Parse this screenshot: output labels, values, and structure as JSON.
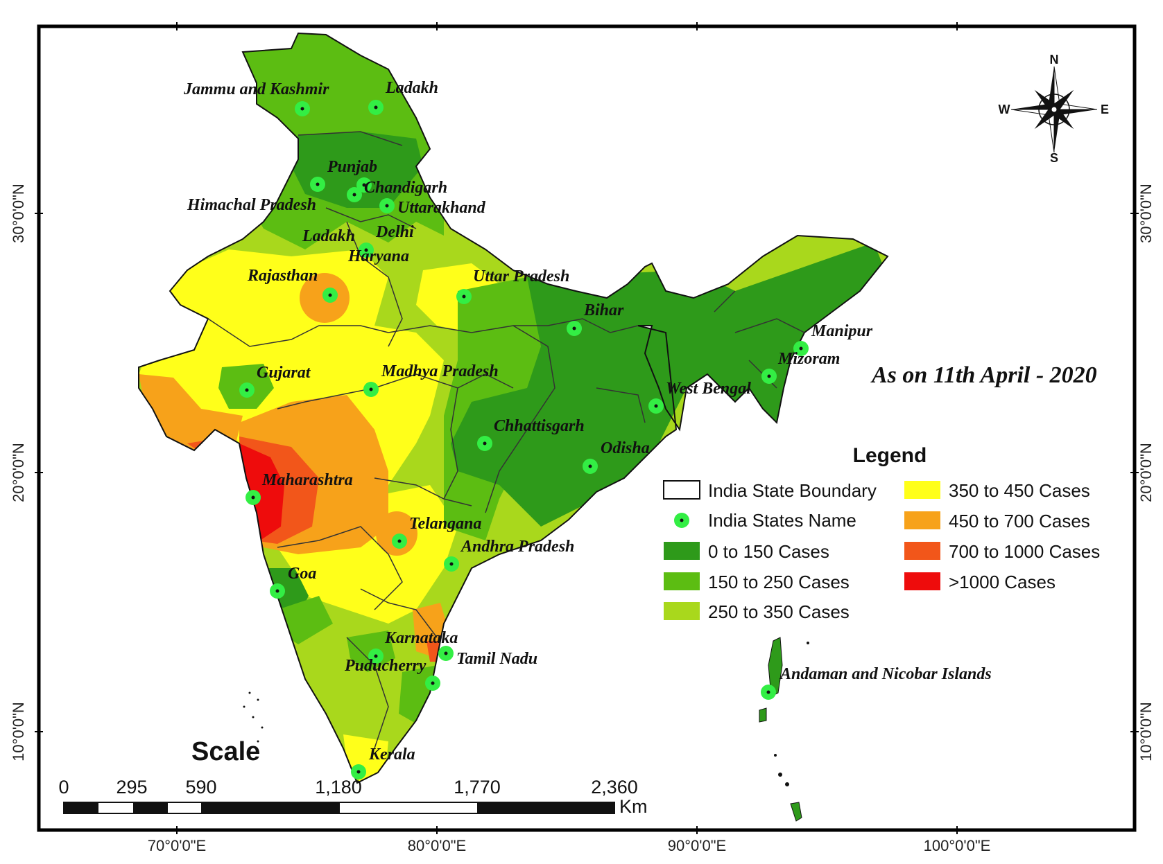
{
  "map": {
    "date_note": "As on 11th April - 2020",
    "lon_labels": [
      "70°0'0\"E",
      "80°0'0\"E",
      "90°0'0\"E",
      "100°0'0\"E"
    ],
    "lat_labels": [
      "30°0'0\"N",
      "20°0'0\"N",
      "10°0'0\"N"
    ],
    "colors": {
      "c0_150": "#2e9a1a",
      "c150_250": "#5cbd12",
      "c250_350": "#a9d81c",
      "c350_450": "#ffff1a",
      "c450_700": "#f7a21a",
      "c700_1000": "#f2561a",
      "c1000": "#ee0c0c",
      "marker": "#33ee44"
    },
    "states": [
      {
        "name": "Jammu and Kashmir"
      },
      {
        "name": "Ladakh"
      },
      {
        "name": "Punjab"
      },
      {
        "name": "Chandigarh"
      },
      {
        "name": "Himachal Pradesh"
      },
      {
        "name": "Uttarakhand"
      },
      {
        "name": "Ladakh"
      },
      {
        "name": "Delhi"
      },
      {
        "name": "Haryana"
      },
      {
        "name": "Rajasthan"
      },
      {
        "name": "Uttar Pradesh"
      },
      {
        "name": "Bihar"
      },
      {
        "name": "Manipur"
      },
      {
        "name": "Mizoram"
      },
      {
        "name": "Gujarat"
      },
      {
        "name": "Madhya Pradesh"
      },
      {
        "name": "West Bengal"
      },
      {
        "name": "Chhattisgarh"
      },
      {
        "name": "Odisha"
      },
      {
        "name": "Maharashtra"
      },
      {
        "name": "Telangana"
      },
      {
        "name": "Andhra Pradesh"
      },
      {
        "name": "Goa"
      },
      {
        "name": "Karnataka"
      },
      {
        "name": "Tamil Nadu"
      },
      {
        "name": "Puducherry"
      },
      {
        "name": "Andaman and Nicobar Islands"
      },
      {
        "name": "Kerala"
      }
    ]
  },
  "legend": {
    "title": "Legend",
    "items": [
      {
        "label": "India State Boundary",
        "swatch": "boundary"
      },
      {
        "label": "India States Name",
        "swatch": "marker"
      },
      {
        "label": "0 to 150 Cases",
        "color": "#2e9a1a"
      },
      {
        "label": "150 to 250 Cases",
        "color": "#5cbd12"
      },
      {
        "label": "250 to 350 Cases",
        "color": "#a9d81c"
      },
      {
        "label": "350 to 450 Cases",
        "color": "#ffff1a"
      },
      {
        "label": "450 to 700 Cases",
        "color": "#f7a21a"
      },
      {
        "label": "700 to 1000 Cases",
        "color": "#f2561a"
      },
      {
        "label": ">1000 Cases",
        "color": "#ee0c0c"
      }
    ]
  },
  "scale": {
    "title": "Scale",
    "ticks": [
      "0",
      "295",
      "590",
      "1,180",
      "1,770",
      "2,360"
    ],
    "unit": "Km"
  },
  "compass": {
    "n": "N",
    "s": "S",
    "e": "E",
    "w": "W"
  }
}
